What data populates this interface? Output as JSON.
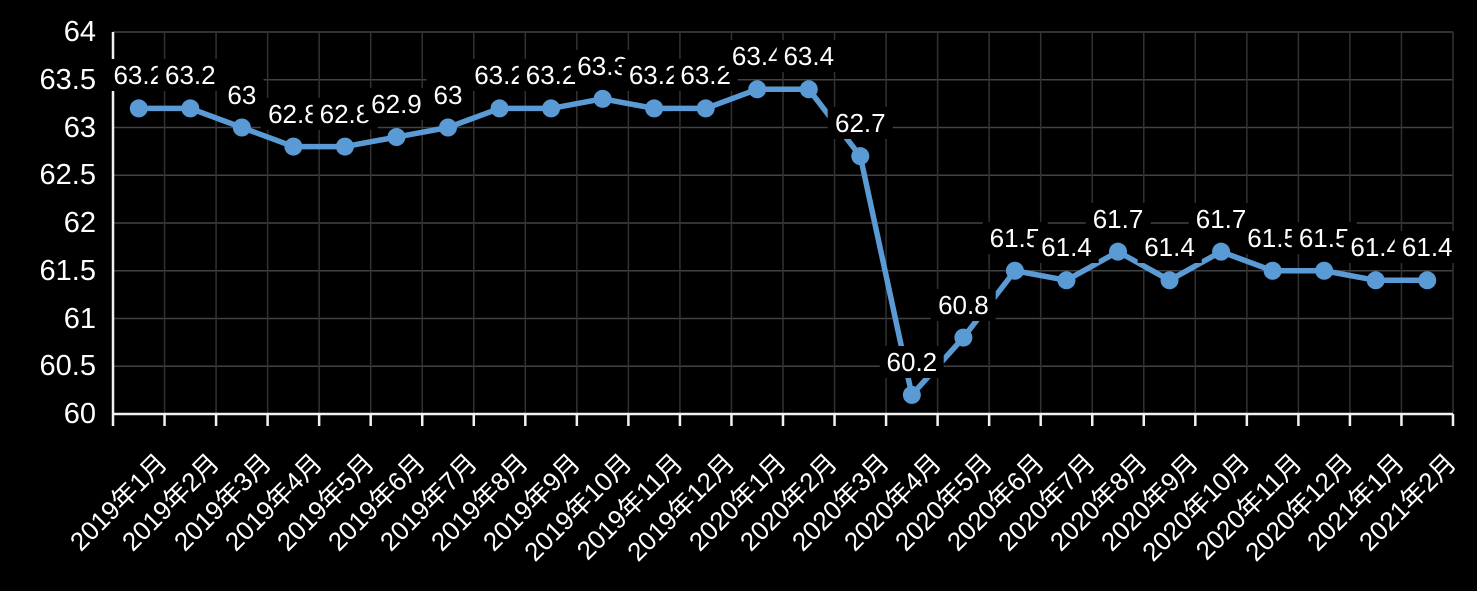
{
  "chart_data": {
    "type": "line",
    "categories": [
      "2019年1月",
      "2019年2月",
      "2019年3月",
      "2019年4月",
      "2019年5月",
      "2019年6月",
      "2019年7月",
      "2019年8月",
      "2019年9月",
      "2019年10月",
      "2019年11月",
      "2019年12月",
      "2020年1月",
      "2020年2月",
      "2020年3月",
      "2020年4月",
      "2020年5月",
      "2020年6月",
      "2020年7月",
      "2020年8月",
      "2020年9月",
      "2020年10月",
      "2020年11月",
      "2020年12月",
      "2021年1月",
      "2021年2月"
    ],
    "values": [
      63.2,
      63.2,
      63,
      62.8,
      62.8,
      62.9,
      63,
      63.2,
      63.2,
      63.3,
      63.2,
      63.2,
      63.4,
      63.4,
      62.7,
      60.2,
      60.8,
      61.5,
      61.4,
      61.7,
      61.4,
      61.7,
      61.5,
      61.5,
      61.4,
      61.4
    ],
    "data_labels_shown": true,
    "title": "",
    "xlabel": "",
    "ylabel": "",
    "ylim": [
      60,
      64
    ],
    "ytick_step": 0.5,
    "yticks": [
      "64",
      "63.5",
      "63",
      "62.5",
      "62",
      "61.5",
      "61",
      "60.5",
      "60"
    ],
    "grid": true,
    "legend": "none"
  },
  "colors": {
    "background": "#000000",
    "line": "#5B9BD5",
    "marker": "#5B9BD5",
    "grid_horizontal": "#424242",
    "grid_vertical": "#323232",
    "axis": "#f2f2f2",
    "tick": "#f2f2f2",
    "axis_text": "#ffffff",
    "data_label_text": "#ffffff",
    "data_label_bg": "#000000"
  }
}
